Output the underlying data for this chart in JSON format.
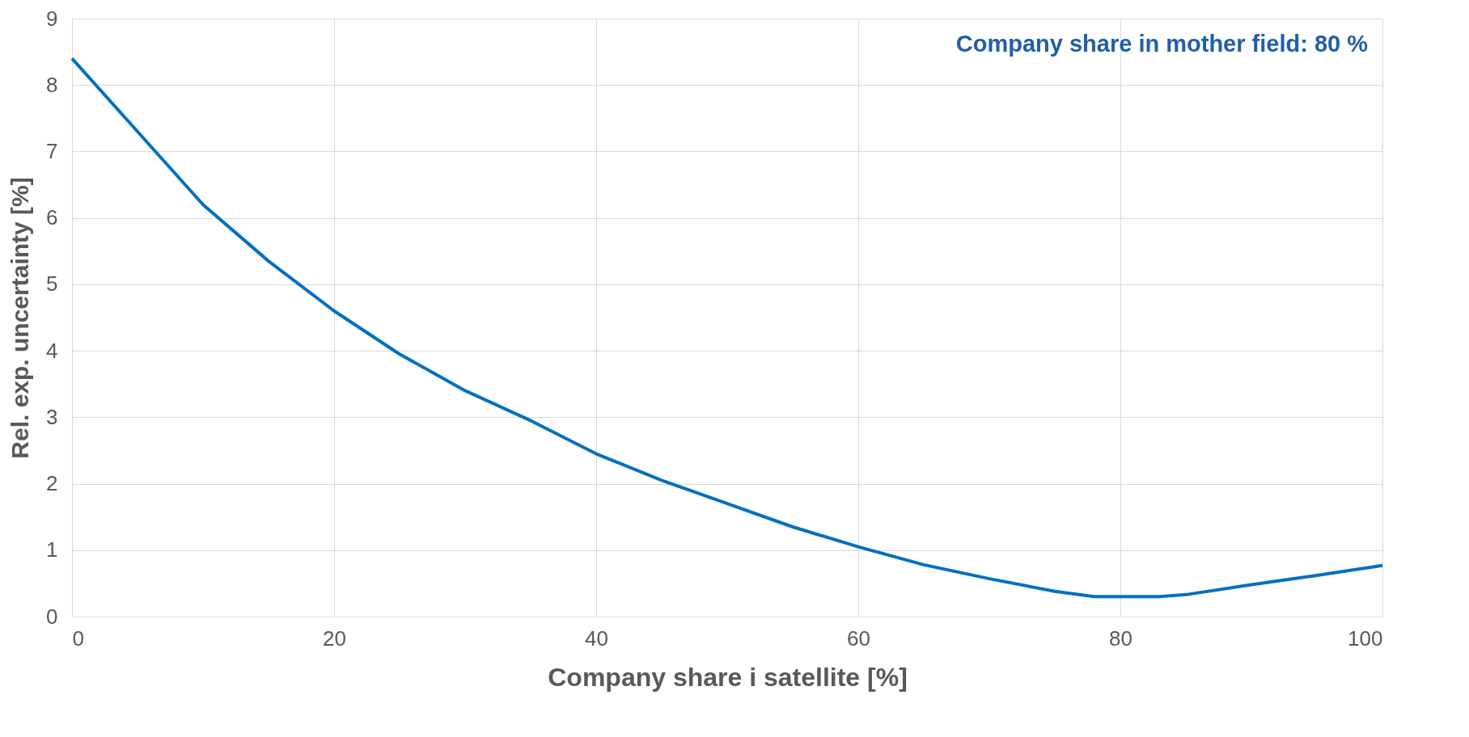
{
  "chart_data": {
    "type": "line",
    "xlabel": "Company share i satellite  [%]",
    "ylabel": "Rel. exp. uncertainty  [%]",
    "annotations": [
      "Company share in mother field: 80 %"
    ],
    "x": [
      0,
      5,
      10,
      15,
      20,
      25,
      30,
      35,
      40,
      45,
      50,
      55,
      60,
      65,
      70,
      75,
      78,
      80,
      83,
      85,
      90,
      95,
      100
    ],
    "series": [
      {
        "color": "#0070c0",
        "values": [
          8.4,
          7.3,
          6.2,
          5.35,
          4.6,
          3.95,
          3.4,
          2.95,
          2.45,
          2.05,
          1.7,
          1.35,
          1.05,
          0.78,
          0.57,
          0.38,
          0.3,
          0.3,
          0.3,
          0.33,
          0.48,
          0.62,
          0.77
        ]
      }
    ],
    "xlim": [
      0,
      100
    ],
    "xticks": [
      0,
      20,
      40,
      60,
      80,
      100
    ],
    "ylim": [
      0,
      9
    ],
    "yticks": [
      0,
      1,
      2,
      3,
      4,
      5,
      6,
      7,
      8,
      9
    ],
    "grid": true,
    "marker": "none",
    "line_style": "solid"
  }
}
